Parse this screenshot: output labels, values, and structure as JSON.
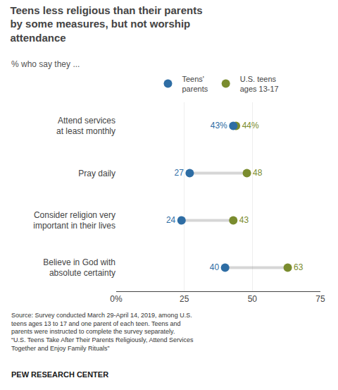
{
  "chart_data": {
    "type": "dot",
    "title": "Teens less religious than their parents\nby some measures, but not worship\nattendance",
    "subtitle": "% who say they ...",
    "categories": [
      "Attend services\nat least monthly",
      "Pray daily",
      "Consider religion very\nimportant in their lives",
      "Believe in God with\nabsolute certainty"
    ],
    "series": [
      {
        "name": "Teens'\nparents",
        "color": "#2e6da4",
        "values": [
          43,
          27,
          24,
          40
        ],
        "value_labels": [
          "43%",
          "27",
          "24",
          "40"
        ]
      },
      {
        "name": "U.S. teens\nages 13-17",
        "color": "#7a8c2e",
        "values": [
          44,
          48,
          43,
          63
        ],
        "value_labels": [
          "44%",
          "48",
          "43",
          "63"
        ]
      }
    ],
    "xlim": [
      0,
      75
    ],
    "xticks": [
      {
        "value": 0,
        "label": "0%"
      },
      25,
      50,
      75
    ],
    "grid": true,
    "legend": "top",
    "data_labels": true,
    "marker": "circle",
    "source": "Source: Survey conducted March 29-April 14, 2019, among U.S.\nteens ages 13 to 17 and one parent of each teen. Teens and\nparents were instructed to complete the survey separately.\n“U.S. Teens Take After Their Parents Religiously, Attend Services\nTogether and Enjoy Family Rituals”",
    "footer": "PEW RESEARCH CENTER"
  }
}
